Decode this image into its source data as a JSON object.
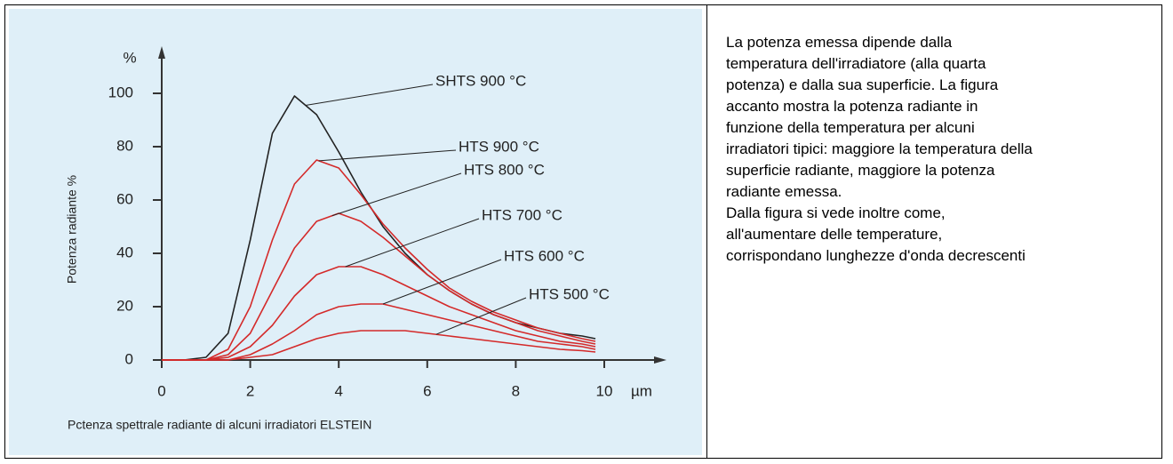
{
  "chart_data": {
    "type": "line",
    "y_unit": "%",
    "x_unit": "µm",
    "ylabel": "Potenza radiante %",
    "caption": "Pctenza spettrale radiante di alcuni irradiatori ELSTEIN",
    "x": [
      0,
      0.5,
      1,
      1.5,
      2,
      2.5,
      3,
      3.5,
      4,
      4.5,
      5,
      5.5,
      6,
      6.5,
      7,
      7.5,
      8,
      8.5,
      9,
      9.5,
      9.8
    ],
    "series": [
      {
        "name": "SHTS 900 °C",
        "color": "#222222",
        "values": [
          0,
          0,
          1,
          10,
          45,
          85,
          99,
          92,
          78,
          63,
          50,
          40,
          32,
          26,
          21,
          17,
          14,
          12,
          10,
          9,
          8
        ]
      },
      {
        "name": "HTS 900 °C",
        "color": "#d42a2a",
        "values": [
          0,
          0,
          0,
          4,
          20,
          45,
          66,
          75,
          72,
          62,
          51,
          42,
          34,
          27,
          22,
          18,
          15,
          12,
          10,
          8,
          7
        ]
      },
      {
        "name": "HTS 800 °C",
        "color": "#d42a2a",
        "values": [
          0,
          0,
          0,
          2,
          10,
          26,
          42,
          52,
          55,
          52,
          46,
          39,
          32,
          26,
          21,
          17,
          14,
          11,
          9,
          7,
          6
        ]
      },
      {
        "name": "HTS 700 °C",
        "color": "#d42a2a",
        "values": [
          0,
          0,
          0,
          1,
          5,
          13,
          24,
          32,
          35,
          35,
          32,
          28,
          24,
          20,
          17,
          14,
          11,
          9,
          7,
          6,
          5
        ]
      },
      {
        "name": "HTS 600 °C",
        "color": "#d42a2a",
        "values": [
          0,
          0,
          0,
          0,
          2,
          6,
          11,
          17,
          20,
          21,
          21,
          19,
          17,
          15,
          13,
          11,
          9,
          7,
          6,
          5,
          4
        ]
      },
      {
        "name": "HTS 500 °C",
        "color": "#d42a2a",
        "values": [
          0,
          0,
          0,
          0,
          1,
          2,
          5,
          8,
          10,
          11,
          11,
          11,
          10,
          9,
          8,
          7,
          6,
          5,
          4,
          3.5,
          3
        ]
      }
    ],
    "xlim": [
      0,
      10
    ],
    "xticks": [
      0,
      2,
      4,
      6,
      8,
      10
    ],
    "ylim": [
      0,
      100
    ],
    "yticks": [
      0,
      20,
      40,
      60,
      80,
      100
    ]
  },
  "text": {
    "lines": [
      "La potenza emessa dipende dalla",
      "temperatura dell'irradiatore (alla quarta",
      "potenza) e dalla sua superficie. La figura",
      "accanto mostra la potenza radiante in",
      "funzione della temperatura per alcuni",
      "irradiatori tipici: maggiore la temperatura della",
      "superficie radiante, maggiore la potenza",
      "radiante emessa.",
      "Dalla figura si vede inoltre come,",
      "all'aumentare delle temperature,",
      "corrispondano lunghezze d'onda decrescenti"
    ]
  }
}
